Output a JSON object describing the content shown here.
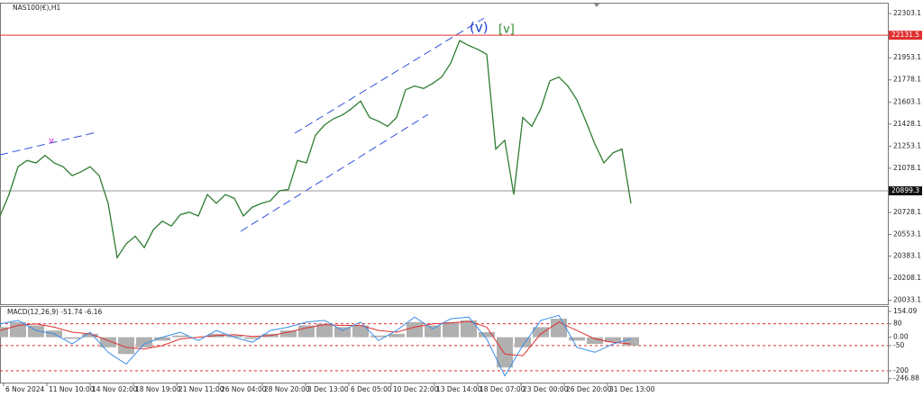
{
  "chart_data": [
    {
      "type": "line",
      "title": "NAS100(€),H1",
      "x": [
        0,
        1,
        2,
        3,
        4,
        5,
        6,
        7,
        8,
        9,
        10,
        11,
        12,
        13,
        14,
        15,
        16,
        17,
        18,
        19,
        20,
        21,
        22,
        23,
        24,
        25,
        26,
        27,
        28,
        29,
        30,
        31,
        32,
        33,
        34,
        35,
        36,
        37,
        38,
        39,
        40,
        41,
        42,
        43,
        44,
        45,
        46,
        47,
        48,
        49,
        50,
        51,
        52,
        53,
        54,
        55,
        56,
        57,
        58,
        59,
        60,
        61,
        62,
        63,
        64,
        65,
        66,
        67,
        68,
        69,
        70
      ],
      "series": [
        {
          "color": "#2e7d32",
          "values": [
            20700,
            20870,
            21090,
            21140,
            21120,
            21180,
            21120,
            21090,
            21020,
            21050,
            21090,
            21020,
            20800,
            20370,
            20480,
            20540,
            20450,
            20590,
            20660,
            20620,
            20710,
            20730,
            20700,
            20870,
            20800,
            20870,
            20840,
            20700,
            20770,
            20800,
            20820,
            20900,
            20910,
            21140,
            21120,
            21340,
            21420,
            21470,
            21500,
            21550,
            21610,
            21480,
            21450,
            21410,
            21480,
            21700,
            21730,
            21710,
            21750,
            21800,
            21910,
            22090,
            22050,
            22020,
            21980,
            21230,
            21300,
            20870,
            21480,
            21410,
            21550,
            21770,
            21800,
            21730,
            21620,
            21450,
            21270,
            21120,
            21200,
            21230,
            20800
          ]
        }
      ],
      "xlim": [
        0,
        98.5
      ],
      "ylim": [
        20001,
        22382
      ],
      "xticks": [
        {
          "value": 0.4,
          "label": "6 Nov 2024"
        },
        {
          "value": 5.2,
          "label": "11 Nov 10:00"
        },
        {
          "value": 10,
          "label": "14 Nov 02:00"
        },
        {
          "value": 14.8,
          "label": "18 Nov 19:00"
        },
        {
          "value": 19.6,
          "label": "21 Nov 11:00"
        },
        {
          "value": 24.3,
          "label": "26 Nov 04:00"
        },
        {
          "value": 29.1,
          "label": "28 Nov 20:00"
        },
        {
          "value": 33.9,
          "label": "3 Dec 13:00"
        },
        {
          "value": 38.7,
          "label": "6 Dec 05:00"
        },
        {
          "value": 43.4,
          "label": "10 Dec 22:00"
        },
        {
          "value": 48.2,
          "label": "13 Dec 14:00"
        },
        {
          "value": 53,
          "label": "18 Dec 07:00"
        },
        {
          "value": 57.8,
          "label": "23 Dec 00:00"
        },
        {
          "value": 62.6,
          "label": "26 Dec 20:00"
        },
        {
          "value": 67.4,
          "label": "31 Dec 13:00"
        }
      ],
      "yticks": [
        22303.1,
        21953.1,
        21778.1,
        21603.1,
        21428.1,
        21253.1,
        21078.1,
        20728.1,
        20553.1,
        20383.1,
        20208.1,
        20033.1
      ],
      "levels": [
        {
          "value": 22131.5,
          "color": "#e03030"
        },
        {
          "value": 20899.3,
          "color": "#999999"
        }
      ],
      "annotations": [
        {
          "text": "(v)",
          "color": "#2040d0"
        },
        {
          "text": "[v]",
          "color": "#2a8a2a"
        },
        {
          "text": "v",
          "color": "#d020d0"
        }
      ]
    },
    {
      "type": "macd",
      "title": "MACD(12,26,9) -51.74 -6.16",
      "x": [
        0,
        2,
        4,
        6,
        8,
        10,
        12,
        14,
        16,
        18,
        20,
        22,
        24,
        26,
        28,
        30,
        32,
        34,
        36,
        38,
        40,
        42,
        44,
        46,
        48,
        50,
        52,
        54,
        56,
        58,
        60,
        62,
        64,
        66,
        68,
        70
      ],
      "series": [
        {
          "color": "#b0b0b0",
          "values": [
            60,
            90,
            70,
            40,
            -10,
            20,
            -60,
            -100,
            -60,
            -20,
            10,
            0,
            20,
            10,
            -10,
            20,
            40,
            70,
            80,
            60,
            70,
            10,
            20,
            90,
            70,
            90,
            100,
            30,
            -180,
            -60,
            60,
            110,
            -20,
            -40,
            -30,
            -50
          ]
        },
        {
          "color": "#e03030",
          "values": [
            40,
            70,
            80,
            60,
            30,
            20,
            -20,
            -60,
            -70,
            -50,
            -10,
            0,
            10,
            15,
            5,
            10,
            30,
            55,
            75,
            70,
            70,
            40,
            30,
            60,
            80,
            85,
            95,
            60,
            -100,
            -110,
            20,
            90,
            40,
            -10,
            -30,
            -40
          ]
        },
        {
          "color": "#3a8ee6",
          "values": [
            80,
            100,
            40,
            20,
            -40,
            30,
            -90,
            -160,
            -40,
            0,
            30,
            -20,
            40,
            0,
            -30,
            40,
            60,
            90,
            100,
            40,
            90,
            -20,
            40,
            120,
            50,
            110,
            120,
            -10,
            -230,
            -50,
            100,
            130,
            -60,
            -90,
            -40,
            -10
          ]
        }
      ],
      "xlim": [
        0,
        98.5
      ],
      "ylim": [
        -270,
        180
      ],
      "yticks": [
        154.09,
        80,
        {
          "value": 0,
          "label": "0.00"
        },
        -50,
        -200,
        -246.88
      ],
      "levels": [
        80,
        -50,
        -200
      ]
    }
  ]
}
